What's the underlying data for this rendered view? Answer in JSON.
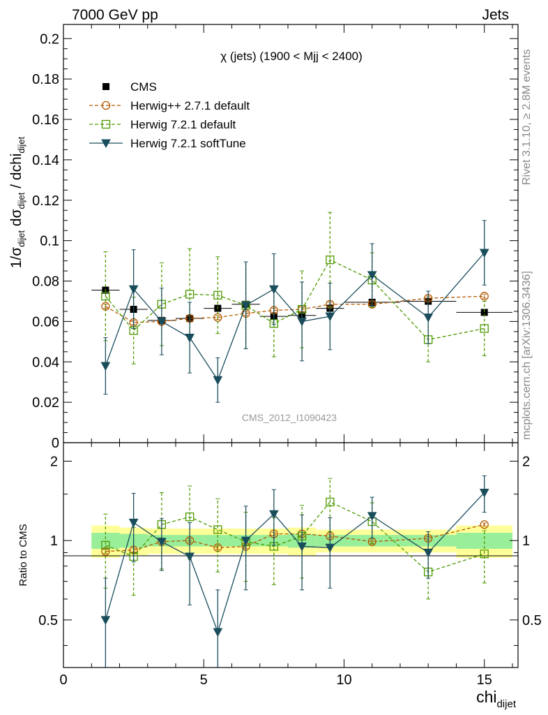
{
  "header": {
    "left": "7000 GeV pp",
    "right": "Jets"
  },
  "side_labels": {
    "rivet": "Rivet 3.1.10, ≥ 2.8M events",
    "mcplots": "mcplots.cern.ch [arXiv:1306.3436]"
  },
  "watermark": "CMS_2012_I1090423",
  "chart_data": [
    {
      "type": "line",
      "title": "χ (jets) (1900 < Mjj < 2400)",
      "ylabel": "1/σ_dijet dσ_dijet / dchi_dijet",
      "xlabel": "chi_dijet",
      "xlim": [
        0,
        16.2
      ],
      "ylim": [
        0,
        0.207
      ],
      "yticks": [
        0,
        0.02,
        0.04,
        0.06,
        0.08,
        0.1,
        0.12,
        0.14,
        0.16,
        0.18,
        0.2
      ],
      "ytick_labels": [
        "0",
        "0.02",
        "0.04",
        "0.06",
        "0.08",
        "0.1",
        "0.12",
        "0.14",
        "0.16",
        "0.18",
        "0.2"
      ],
      "legend_position": "top-left",
      "data": {
        "name": "CMS",
        "x": [
          1.5,
          2.5,
          3.5,
          4.5,
          5.5,
          6.5,
          7.5,
          8.5,
          9.5,
          11,
          13,
          15
        ],
        "xerr": [
          0.5,
          0.5,
          0.5,
          0.5,
          0.5,
          0.5,
          0.5,
          0.5,
          0.5,
          1,
          1,
          1
        ],
        "y": [
          0.0755,
          0.066,
          0.0605,
          0.0615,
          0.0665,
          0.0685,
          0.0625,
          0.063,
          0.0665,
          0.0695,
          0.07,
          0.0645
        ]
      },
      "series": [
        {
          "name": "Herwig++ 2.7.1 default",
          "color": "#b35900",
          "marker": "open-circle",
          "x": [
            1.5,
            2.5,
            3.5,
            4.5,
            5.5,
            6.5,
            7.5,
            8.5,
            9.5,
            11,
            13,
            15
          ],
          "y": [
            0.0675,
            0.0595,
            0.06,
            0.0615,
            0.062,
            0.064,
            0.0655,
            0.066,
            0.0685,
            0.0685,
            0.0715,
            0.0725
          ],
          "yerr": [
            0.001,
            0.001,
            0.001,
            0.001,
            0.001,
            0.001,
            0.001,
            0.001,
            0.001,
            0.001,
            0.001,
            0.001
          ]
        },
        {
          "name": "Herwig 7.2.1 default",
          "color": "#4d9900",
          "marker": "open-square",
          "x": [
            1.5,
            2.5,
            3.5,
            4.5,
            5.5,
            6.5,
            7.5,
            8.5,
            9.5,
            11,
            13,
            15
          ],
          "y": [
            0.0725,
            0.0555,
            0.0685,
            0.0735,
            0.073,
            0.068,
            0.059,
            0.066,
            0.0905,
            0.0805,
            0.051,
            0.0565
          ],
          "yerr": [
            0.022,
            0.0165,
            0.0205,
            0.0225,
            0.019,
            0.0215,
            0.0165,
            0.019,
            0.0235,
            0.0135,
            0.011,
            0.0135
          ]
        },
        {
          "name": "Herwig 7.2.1 softTune",
          "color": "#1a4d5c",
          "marker": "filled-triangle-down",
          "x": [
            1.5,
            2.5,
            3.5,
            4.5,
            5.5,
            6.5,
            7.5,
            8.5,
            9.5,
            11,
            13,
            15
          ],
          "y": [
            0.038,
            0.076,
            0.06,
            0.052,
            0.031,
            0.068,
            0.076,
            0.06,
            0.0625,
            0.083,
            0.062,
            0.094
          ],
          "yerr": [
            0.014,
            0.0195,
            0.0165,
            0.0175,
            0.011,
            0.0215,
            0.0175,
            0.0195,
            0.0165,
            0.0155,
            0.013,
            0.016
          ]
        }
      ]
    },
    {
      "type": "line",
      "ylabel": "Ratio to CMS",
      "xlabel": "chi_dijet",
      "xlim": [
        0,
        16.2
      ],
      "ylim": [
        0.33,
        2.35
      ],
      "yticks": [
        0.5,
        1,
        2
      ],
      "ytick_labels": [
        "0.5",
        "1",
        "2"
      ],
      "xticks": [
        0,
        5,
        10,
        15
      ],
      "xtick_labels": [
        "0",
        "5",
        "10",
        "15"
      ],
      "bands": {
        "x_edges": [
          1,
          2,
          3,
          4,
          5,
          6,
          7,
          8,
          9,
          10,
          12,
          14,
          16
        ],
        "inner": [
          0.07,
          0.06,
          0.05,
          0.05,
          0.05,
          0.05,
          0.05,
          0.06,
          0.05,
          0.05,
          0.05,
          0.07
        ],
        "outer": [
          0.14,
          0.12,
          0.11,
          0.11,
          0.11,
          0.11,
          0.11,
          0.12,
          0.1,
          0.1,
          0.1,
          0.14
        ],
        "inner_color": "#99ee99",
        "outer_color": "#ffff99"
      },
      "series": [
        {
          "name": "Herwig++ 2.7.1 default",
          "color": "#b35900",
          "marker": "open-circle",
          "x": [
            1.5,
            2.5,
            3.5,
            4.5,
            5.5,
            6.5,
            7.5,
            8.5,
            9.5,
            11,
            13,
            15
          ],
          "y": [
            0.91,
            0.92,
            0.99,
            1.0,
            0.94,
            0.95,
            1.06,
            1.06,
            1.04,
            0.99,
            1.02,
            1.15
          ],
          "yerr": [
            0.015,
            0.015,
            0.015,
            0.015,
            0.015,
            0.015,
            0.015,
            0.015,
            0.015,
            0.015,
            0.015,
            0.015
          ]
        },
        {
          "name": "Herwig 7.2.1 default",
          "color": "#4d9900",
          "marker": "open-square",
          "x": [
            1.5,
            2.5,
            3.5,
            4.5,
            5.5,
            6.5,
            7.5,
            8.5,
            9.5,
            11,
            13,
            15
          ],
          "y": [
            0.96,
            0.87,
            1.15,
            1.23,
            1.1,
            0.99,
            0.95,
            1.04,
            1.4,
            1.18,
            0.76,
            0.89
          ],
          "yerr": [
            0.3,
            0.25,
            0.37,
            0.38,
            0.34,
            0.29,
            0.27,
            0.32,
            0.32,
            0.21,
            0.16,
            0.2
          ]
        },
        {
          "name": "Herwig 7.2.1 softTune",
          "color": "#1a4d5c",
          "marker": "filled-triangle-down",
          "x": [
            1.5,
            2.5,
            3.5,
            4.5,
            5.5,
            6.5,
            7.5,
            8.5,
            9.5,
            11,
            13,
            15
          ],
          "y": [
            0.5,
            1.17,
            0.99,
            0.87,
            0.45,
            1.0,
            1.26,
            0.95,
            0.94,
            1.24,
            0.9,
            1.52
          ],
          "yerr": [
            0.22,
            0.34,
            0.22,
            0.3,
            0.2,
            0.35,
            0.3,
            0.3,
            0.28,
            0.22,
            0.18,
            0.24
          ]
        }
      ]
    }
  ]
}
